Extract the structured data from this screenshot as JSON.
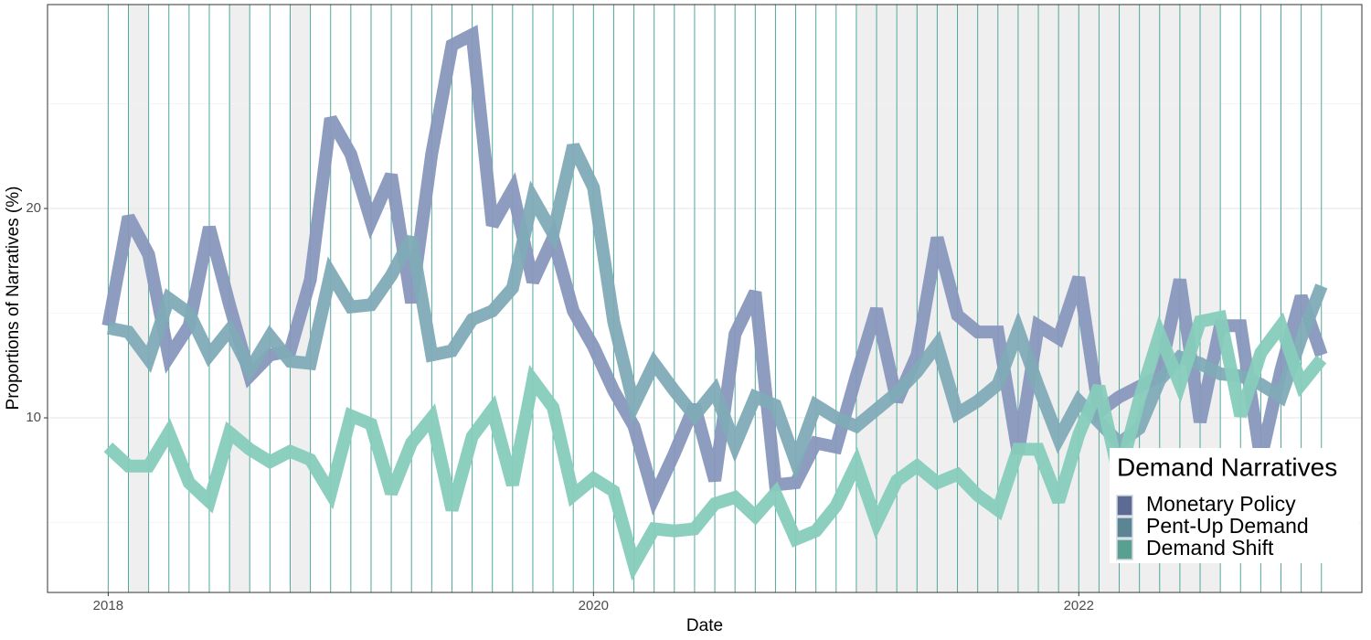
{
  "chart_data": {
    "type": "line",
    "x_label": "Date",
    "y_label": "Proportions of Narratives (%)",
    "legend_title": "Demand Narratives",
    "legend_position": "bottom-right",
    "grid": true,
    "x": [
      "2018-01",
      "2018-02",
      "2018-03",
      "2018-04",
      "2018-05",
      "2018-06",
      "2018-07",
      "2018-08",
      "2018-09",
      "2018-10",
      "2018-11",
      "2018-12",
      "2019-01",
      "2019-02",
      "2019-03",
      "2019-04",
      "2019-05",
      "2019-06",
      "2019-07",
      "2019-08",
      "2019-09",
      "2019-10",
      "2019-11",
      "2019-12",
      "2020-01",
      "2020-02",
      "2020-03",
      "2020-04",
      "2020-05",
      "2020-06",
      "2020-07",
      "2020-08",
      "2020-09",
      "2020-10",
      "2020-11",
      "2020-12",
      "2021-01",
      "2021-02",
      "2021-03",
      "2021-04",
      "2021-05",
      "2021-06",
      "2021-07",
      "2021-08",
      "2021-09",
      "2021-10",
      "2021-11",
      "2021-12",
      "2022-01",
      "2022-02",
      "2022-03",
      "2022-04",
      "2022-05",
      "2022-06",
      "2022-07",
      "2022-08",
      "2022-09",
      "2022-10",
      "2022-11",
      "2022-12",
      "2023-01"
    ],
    "xlim": [
      "2017-10",
      "2023-03"
    ],
    "xticks": [
      {
        "value": "2018-01",
        "label": "2018"
      },
      {
        "value": "2020-01",
        "label": "2020"
      },
      {
        "value": "2022-01",
        "label": "2022"
      }
    ],
    "ylim": [
      1.66,
      29.74
    ],
    "yticks": [
      10,
      20
    ],
    "minor_yticks": [
      5,
      15,
      25
    ],
    "vline_color": "#4fa89c",
    "shade_color": "#efefef",
    "shaded_periods": [
      [
        "2018-02",
        "2018-03"
      ],
      [
        "2018-07",
        "2018-08"
      ],
      [
        "2018-10",
        "2018-11"
      ],
      [
        "2021-02",
        "2022-08"
      ]
    ],
    "series": [
      {
        "name": "Monetary Policy",
        "color": "#8897bd",
        "legend_color": "#5d6b94",
        "values": [
          14.4,
          19.6,
          17.8,
          12.9,
          14.4,
          19.1,
          15.4,
          12.0,
          13.0,
          13.2,
          16.6,
          24.3,
          22.6,
          19.4,
          21.6,
          15.5,
          22.6,
          27.8,
          28.3,
          19.2,
          20.9,
          16.5,
          18.6,
          15.1,
          13.4,
          11.3,
          9.6,
          6.2,
          8.3,
          10.6,
          7.0,
          14.0,
          16.0,
          6.8,
          6.9,
          8.8,
          8.6,
          12.0,
          15.2,
          10.8,
          13.0,
          18.6,
          14.9,
          14.1,
          14.1,
          8.3,
          14.4,
          13.8,
          16.7,
          10.3,
          11.0,
          11.5,
          12.0,
          16.6,
          9.8,
          14.4,
          14.4,
          8.0,
          12.3,
          15.8,
          13.0
        ]
      },
      {
        "name": "Pent-Up Demand",
        "color": "#80abb7",
        "legend_color": "#5b8593",
        "values": [
          14.3,
          14.1,
          12.8,
          15.7,
          15.0,
          13.0,
          14.2,
          12.3,
          13.9,
          12.7,
          12.6,
          16.9,
          15.3,
          15.4,
          16.8,
          18.6,
          13.0,
          13.2,
          14.7,
          15.1,
          16.2,
          20.5,
          18.8,
          23.0,
          21.0,
          14.6,
          10.6,
          12.6,
          11.3,
          10.1,
          11.3,
          8.7,
          11.0,
          10.6,
          7.9,
          10.6,
          10.0,
          9.6,
          10.4,
          11.2,
          12.2,
          13.5,
          10.2,
          10.8,
          11.6,
          14.2,
          11.5,
          9.0,
          10.8,
          9.8,
          8.8,
          9.5,
          11.8,
          12.9,
          12.6,
          12.1,
          12.0,
          11.6,
          11.0,
          13.8,
          16.3
        ]
      },
      {
        "name": "Demand Shift",
        "color": "#87ccbc",
        "legend_color": "#5aa090",
        "values": [
          8.6,
          7.7,
          7.7,
          9.3,
          6.9,
          6.0,
          9.3,
          8.5,
          7.9,
          8.4,
          8.0,
          6.4,
          10.1,
          9.7,
          6.4,
          8.8,
          10.0,
          5.6,
          9.1,
          10.4,
          6.8,
          11.8,
          10.5,
          6.3,
          7.1,
          6.5,
          3.0,
          4.7,
          4.6,
          4.7,
          5.9,
          6.2,
          5.3,
          6.4,
          4.2,
          4.6,
          5.8,
          7.8,
          5.0,
          7.0,
          7.7,
          6.9,
          7.3,
          6.3,
          5.6,
          8.5,
          8.5,
          6.0,
          9.2,
          11.5,
          7.2,
          10.9,
          14.0,
          11.6,
          14.6,
          14.8,
          10.1,
          13.1,
          14.4,
          11.6,
          12.8
        ]
      }
    ]
  }
}
